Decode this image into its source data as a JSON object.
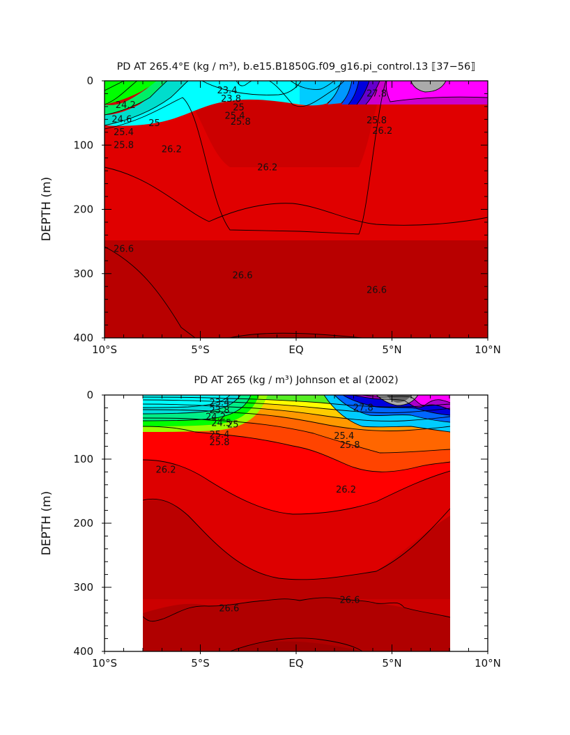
{
  "chart_data": [
    {
      "type": "contour",
      "title": "PD AT 265.4°E (kg / m³), b.e15.B1850G.f09_g16.pi_control.13 ⟦37−56⟧",
      "ylabel": "DEPTH (m)",
      "xlim": [
        -10,
        10
      ],
      "ylim": [
        400,
        0
      ],
      "x_tick_labels": [
        "10°S",
        "5°S",
        "EQ",
        "5°N",
        "10°N"
      ],
      "y_tick_labels": [
        "0",
        "100",
        "200",
        "300",
        "400"
      ],
      "data_extent_x": [
        -10,
        10
      ],
      "contour_labels": [
        {
          "text": "23.4",
          "x": -3.6,
          "y": 15
        },
        {
          "text": "23.8",
          "x": -3.4,
          "y": 28
        },
        {
          "text": "24.2",
          "x": -8.9,
          "y": 38
        },
        {
          "text": "24.6",
          "x": -9.1,
          "y": 60
        },
        {
          "text": "25",
          "x": -7.4,
          "y": 66
        },
        {
          "text": "25",
          "x": -3.0,
          "y": 42
        },
        {
          "text": "25.4",
          "x": -9.0,
          "y": 80
        },
        {
          "text": "25.4",
          "x": -3.2,
          "y": 55
        },
        {
          "text": "25.8",
          "x": -9.0,
          "y": 100
        },
        {
          "text": "25.8",
          "x": -2.9,
          "y": 64
        },
        {
          "text": "26.2",
          "x": -6.5,
          "y": 107
        },
        {
          "text": "26.2",
          "x": -1.5,
          "y": 135
        },
        {
          "text": "26.2",
          "x": 4.5,
          "y": 78
        },
        {
          "text": "25.8",
          "x": 4.2,
          "y": 62
        },
        {
          "text": "26.6",
          "x": -9.0,
          "y": 262
        },
        {
          "text": "26.6",
          "x": -2.8,
          "y": 303
        },
        {
          "text": "26.6",
          "x": 4.2,
          "y": 326
        },
        {
          "text": "27.8",
          "x": 4.2,
          "y": 20
        }
      ]
    },
    {
      "type": "contour",
      "title": "PD AT 265 (kg / m³) Johnson et al (2002)",
      "ylabel": "DEPTH (m)",
      "xlim": [
        -10,
        10
      ],
      "ylim": [
        400,
        0
      ],
      "x_tick_labels": [
        "10°S",
        "5°S",
        "EQ",
        "5°N",
        "10°N"
      ],
      "y_tick_labels": [
        "0",
        "100",
        "200",
        "300",
        "400"
      ],
      "data_extent_x": [
        -8,
        8
      ],
      "contour_labels": [
        {
          "text": "23.4",
          "x": -4.0,
          "y": 12
        },
        {
          "text": "23.8",
          "x": -4.0,
          "y": 24
        },
        {
          "text": "24.2",
          "x": -4.2,
          "y": 34
        },
        {
          "text": "24.5",
          "x": -3.9,
          "y": 44
        },
        {
          "text": "25",
          "x": -3.3,
          "y": 46
        },
        {
          "text": "25.4",
          "x": -4.0,
          "y": 62
        },
        {
          "text": "25.8",
          "x": -4.0,
          "y": 74
        },
        {
          "text": "25.4",
          "x": 2.5,
          "y": 64
        },
        {
          "text": "25.8",
          "x": 2.8,
          "y": 78
        },
        {
          "text": "26.2",
          "x": -6.8,
          "y": 117
        },
        {
          "text": "26.2",
          "x": 2.6,
          "y": 148
        },
        {
          "text": "26.6",
          "x": -3.5,
          "y": 333
        },
        {
          "text": "26.6",
          "x": 2.8,
          "y": 320
        },
        {
          "text": "27.8",
          "x": 3.5,
          "y": 20
        }
      ]
    }
  ]
}
